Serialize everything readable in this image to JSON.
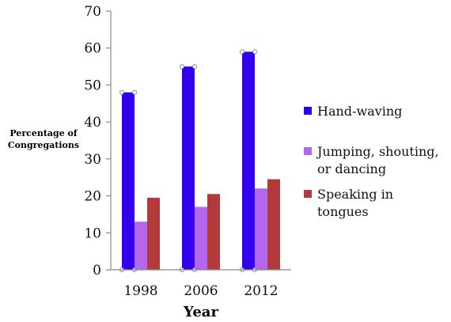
{
  "chart_data": {
    "type": "bar",
    "title": "",
    "xlabel": "Year",
    "ylabel_lines": [
      "Percentage of",
      "Congregations"
    ],
    "categories": [
      "1998",
      "2006",
      "2012"
    ],
    "ylim": [
      0,
      70
    ],
    "yticks": [
      0,
      10,
      20,
      30,
      40,
      50,
      60,
      70
    ],
    "grid": false,
    "legend_position": "right",
    "series": [
      {
        "name": "Hand-waving",
        "name_lines": [
          "Hand-waving"
        ],
        "color": "#3300ee",
        "values": [
          48,
          55,
          59
        ]
      },
      {
        "name": "Jumping, shouting, or dancing",
        "name_lines": [
          "Jumping, shouting,",
          "or dancing"
        ],
        "color": "#b366ee",
        "values": [
          13,
          17,
          22
        ]
      },
      {
        "name": "Speaking in tongues",
        "name_lines": [
          "Speaking in",
          "tongues"
        ],
        "color": "#b33a3a",
        "values": [
          19.5,
          20.5,
          24.5
        ]
      }
    ]
  }
}
